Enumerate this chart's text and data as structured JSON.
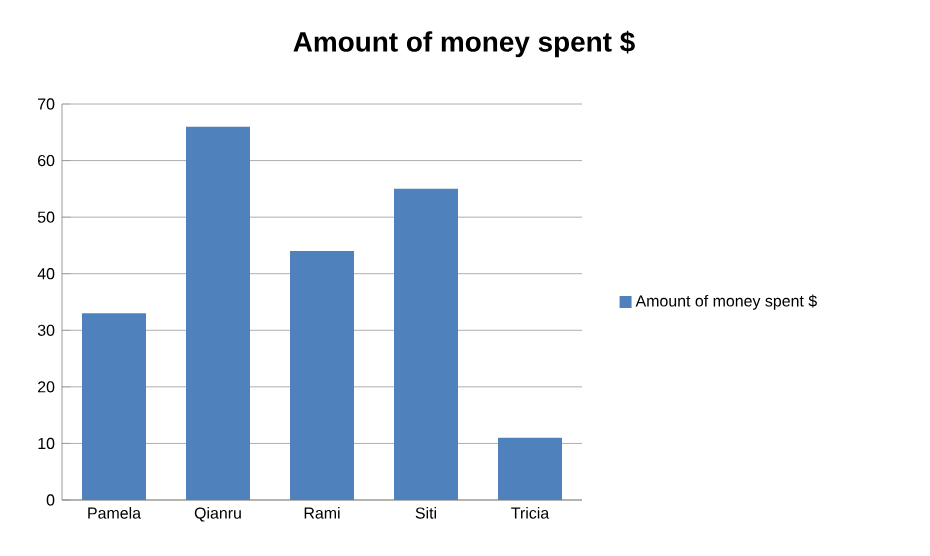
{
  "chart_data": {
    "type": "bar",
    "title": "Amount of money spent $",
    "categories": [
      "Pamela",
      "Qianru",
      "Rami",
      "Siti",
      "Tricia"
    ],
    "series": [
      {
        "name": "Amount of money spent $",
        "color": "#4f81bd",
        "values": [
          33,
          66,
          44,
          55,
          11
        ]
      }
    ],
    "ylim": [
      0,
      70
    ],
    "yticks": [
      0,
      10,
      20,
      30,
      40,
      50,
      60,
      70
    ],
    "grid": "y",
    "legend": "right"
  }
}
